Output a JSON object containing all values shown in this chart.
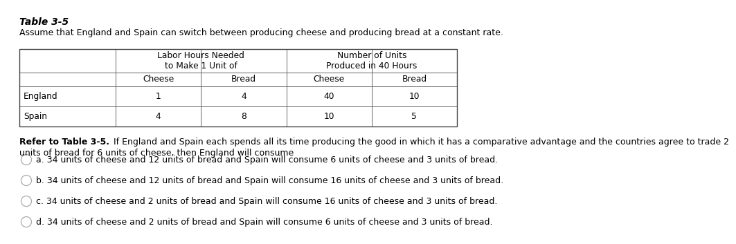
{
  "title": "Table 3-5",
  "subtitle": "Assume that England and Spain can switch between producing cheese and producing bread at a constant rate.",
  "col_header_top_left": "Labor Hours Needed\nto Make 1 Unit of",
  "col_header_top_right": "Number of Units\nProduced in 40 Hours",
  "col_headers_sub": [
    "",
    "Cheese",
    "Bread",
    "Cheese",
    "Bread"
  ],
  "rows": [
    [
      "England",
      "1",
      "4",
      "40",
      "10"
    ],
    [
      "Spain",
      "4",
      "8",
      "10",
      "5"
    ]
  ],
  "question_bold": "Refer to Table 3-5.",
  "question_normal": "  If England and Spain each spends all its time producing the good in which it has a comparative advantage and the countries agree to trade 2 units of bread for 6 units of cheese, then England will consume",
  "options": [
    "a. 34 units of cheese and 12 units of bread and Spain will consume 6 units of cheese and 3 units of bread.",
    "b. 34 units of cheese and 12 units of bread and Spain will consume 16 units of cheese and 3 units of bread.",
    "c. 34 units of cheese and 2 units of bread and Spain will consume 16 units of cheese and 3 units of bread.",
    "d. 34 units of cheese and 2 units of bread and Spain will consume 6 units of cheese and 3 units of bread."
  ],
  "bg_color": "#ffffff",
  "text_color": "#000000",
  "table_border_color": "#666666",
  "title_fontsize": 10,
  "body_fontsize": 9,
  "table_fontsize": 8.8
}
